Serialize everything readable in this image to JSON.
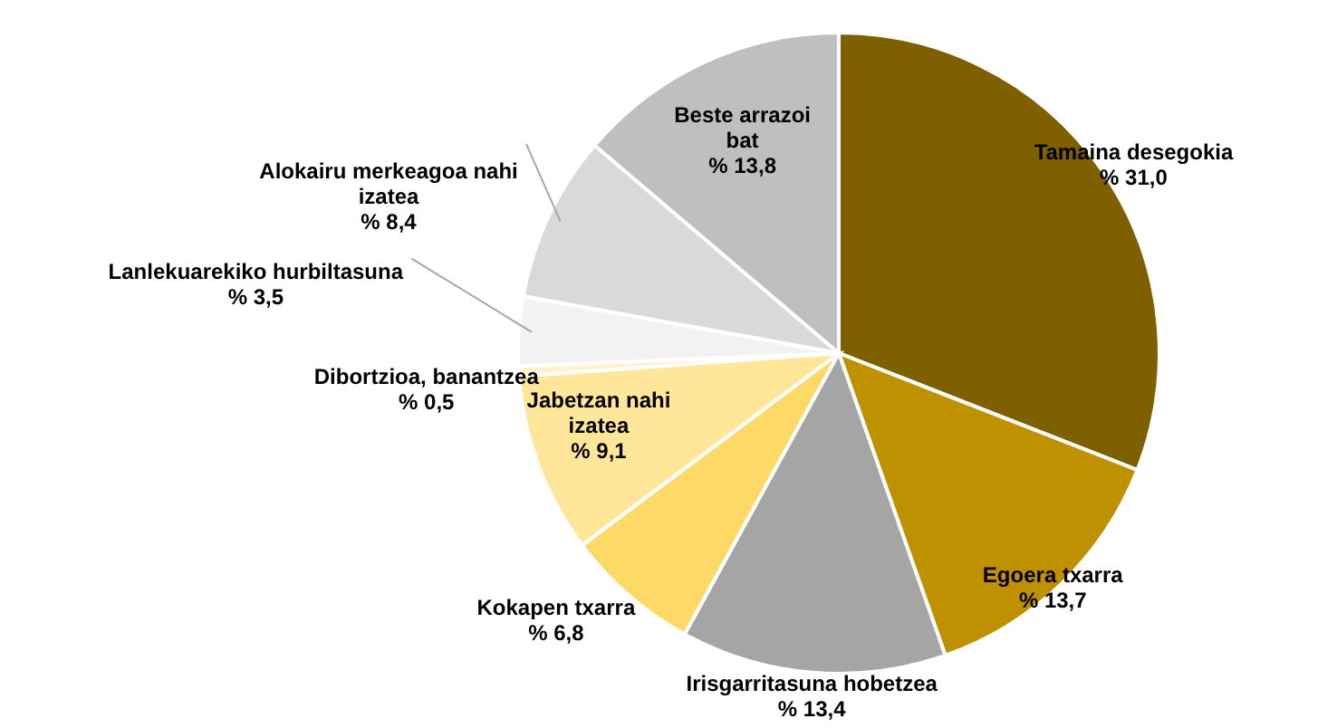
{
  "chart_data": {
    "type": "pie",
    "categories": [
      "Tamaina desegokia",
      "Egoera txarra",
      "Irisgarritasuna hobetzea",
      "Kokapen txarra",
      "Jabetzan nahi izatea",
      "Dibortzioa, banantzea",
      "Lanlekuarekiko hurbiltasuna",
      "Alokairu merkeagoa nahi izatea",
      "Beste arrazoi bat"
    ],
    "values": [
      31.0,
      13.7,
      13.4,
      6.8,
      9.1,
      0.5,
      3.5,
      8.4,
      13.8
    ],
    "value_labels": [
      "% 31,0",
      "% 13,7",
      "% 13,4",
      "% 6,8",
      "% 9,1",
      "% 0,5",
      "% 3,5",
      "% 8,4",
      "% 13,8"
    ],
    "colors": [
      "#7f6000",
      "#bf9000",
      "#a5a5a5",
      "#ffd966",
      "#ffe699",
      "#fff2cc",
      "#f2f2f2",
      "#d9d9d9",
      "#bfbfbf"
    ]
  }
}
